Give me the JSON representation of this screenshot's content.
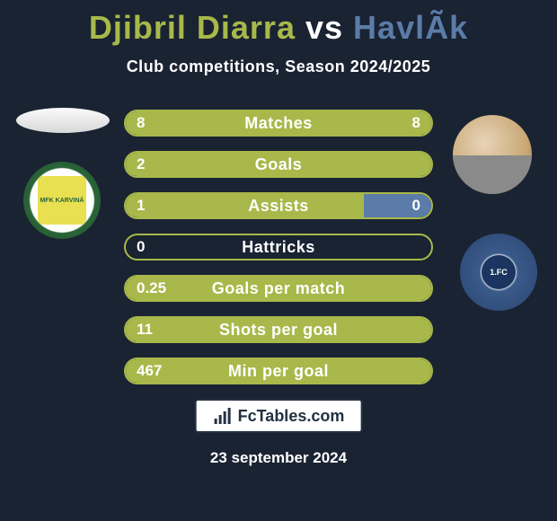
{
  "title": {
    "player1": "Djibril Diarra",
    "vs": "vs",
    "player2": "HavlÃk"
  },
  "subtitle": "Club competitions, Season 2024/2025",
  "colors": {
    "p1": "#a8b84a",
    "p2": "#5b7ca8",
    "bg": "#1a2332",
    "white": "#ffffff"
  },
  "player1_club_text": "MFK KARVINÁ",
  "player2_club_text": "1.FC",
  "stats": [
    {
      "label": "Matches",
      "left_val": "8",
      "right_val": "8",
      "left_pct": 100,
      "right_pct": 100,
      "border": "#a8b84a",
      "fill_left_color": "#a8b84a",
      "fill_right_color": "#5b7ca8",
      "show_right": false
    },
    {
      "label": "Goals",
      "left_val": "2",
      "right_val": "",
      "left_pct": 100,
      "right_pct": 0,
      "border": "#a8b84a",
      "fill_left_color": "#a8b84a",
      "fill_right_color": "#5b7ca8",
      "show_right": false
    },
    {
      "label": "Assists",
      "left_val": "1",
      "right_val": "0",
      "left_pct": 78,
      "right_pct": 22,
      "border": "#a8b84a",
      "fill_left_color": "#a8b84a",
      "fill_right_color": "#5b7ca8",
      "show_right": true
    },
    {
      "label": "Hattricks",
      "left_val": "0",
      "right_val": "",
      "left_pct": 0,
      "right_pct": 0,
      "border": "#a8b84a",
      "fill_left_color": "#a8b84a",
      "fill_right_color": "#5b7ca8",
      "show_right": false
    },
    {
      "label": "Goals per match",
      "left_val": "0.25",
      "right_val": "",
      "left_pct": 100,
      "right_pct": 0,
      "border": "#a8b84a",
      "fill_left_color": "#a8b84a",
      "fill_right_color": "#5b7ca8",
      "show_right": false
    },
    {
      "label": "Shots per goal",
      "left_val": "11",
      "right_val": "",
      "left_pct": 100,
      "right_pct": 0,
      "border": "#a8b84a",
      "fill_left_color": "#a8b84a",
      "fill_right_color": "#5b7ca8",
      "show_right": false
    },
    {
      "label": "Min per goal",
      "left_val": "467",
      "right_val": "",
      "left_pct": 100,
      "right_pct": 0,
      "border": "#a8b84a",
      "fill_left_color": "#a8b84a",
      "fill_right_color": "#5b7ca8",
      "show_right": false
    }
  ],
  "logo_text": "FcTables.com",
  "date": "23 september 2024"
}
